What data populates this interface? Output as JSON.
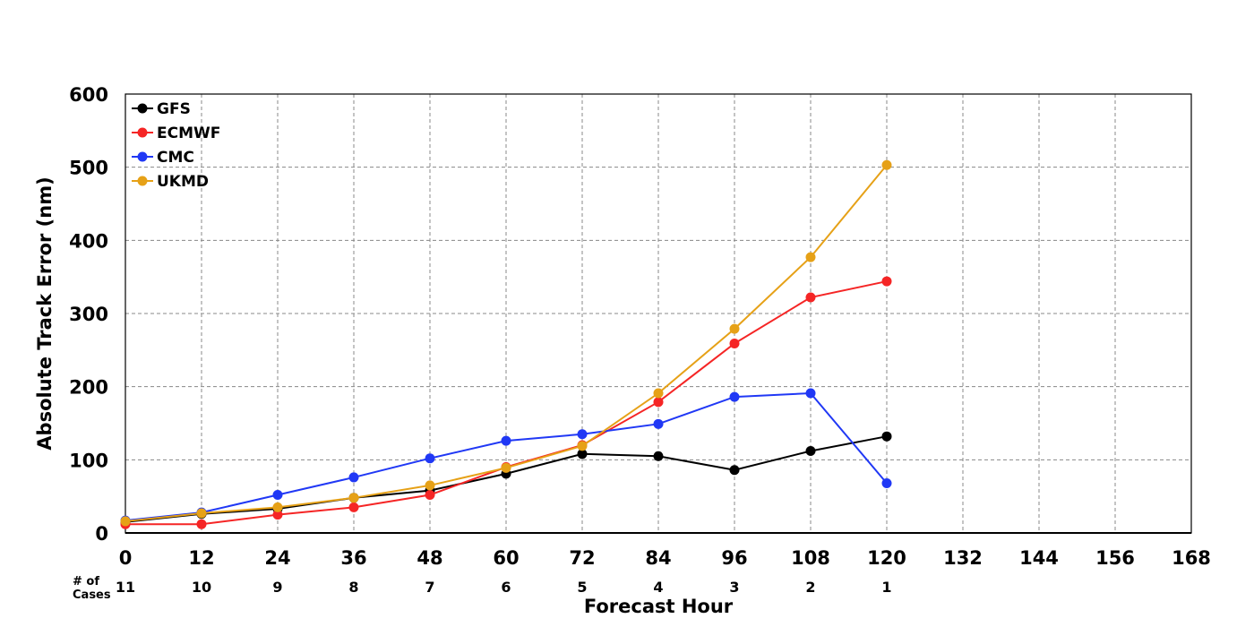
{
  "chart_data": {
    "type": "line",
    "xlabel": "Forecast Hour",
    "ylabel": "Absolute Track Error (nm)",
    "xlim": [
      0,
      168
    ],
    "ylim": [
      0,
      600
    ],
    "x_ticks": [
      0,
      12,
      24,
      36,
      48,
      60,
      72,
      84,
      96,
      108,
      120,
      132,
      144,
      156,
      168
    ],
    "y_ticks": [
      0,
      100,
      200,
      300,
      400,
      500,
      600
    ],
    "grid": true,
    "legend_position": "top-left",
    "x": [
      0,
      12,
      24,
      36,
      48,
      60,
      72,
      84,
      96,
      108,
      120
    ],
    "series": [
      {
        "name": "GFS",
        "color": "#000000",
        "values": [
          15,
          26,
          33,
          48,
          58,
          81,
          108,
          105,
          86,
          112,
          132
        ]
      },
      {
        "name": "ECMWF",
        "color": "#f52525",
        "values": [
          12,
          12,
          25,
          35,
          52,
          90,
          120,
          179,
          259,
          322,
          344
        ]
      },
      {
        "name": "CMC",
        "color": "#2038f5",
        "values": [
          17,
          28,
          52,
          76,
          102,
          126,
          135,
          149,
          186,
          191,
          68
        ]
      },
      {
        "name": "UKMD",
        "color": "#e6a117",
        "values": [
          16,
          27,
          35,
          48,
          65,
          89,
          119,
          191,
          279,
          377,
          503
        ]
      }
    ],
    "cases_label": [
      "# of",
      "Cases"
    ],
    "cases": [
      11,
      10,
      9,
      8,
      7,
      6,
      5,
      4,
      3,
      2,
      1
    ]
  }
}
